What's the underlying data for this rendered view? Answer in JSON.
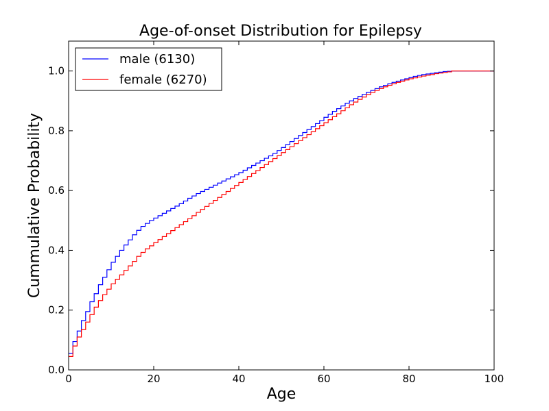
{
  "chart_data": {
    "type": "line",
    "step": true,
    "title": "Age-of-onset Distribution for Epilepsy",
    "xlabel": "Age",
    "ylabel": "Cummulative Probability",
    "xlim": [
      0,
      100
    ],
    "ylim": [
      0,
      1.1
    ],
    "xticks": [
      0,
      20,
      40,
      60,
      80,
      100
    ],
    "yticks": [
      0.0,
      0.2,
      0.4,
      0.6,
      0.8,
      1.0
    ],
    "xtick_labels": [
      "0",
      "20",
      "40",
      "60",
      "80",
      "100"
    ],
    "ytick_labels": [
      "0.0",
      "0.2",
      "0.4",
      "0.6",
      "0.8",
      "1.0"
    ],
    "grid": false,
    "legend_position": "top-left",
    "x": [
      0,
      1,
      2,
      3,
      4,
      5,
      6,
      7,
      8,
      9,
      10,
      11,
      12,
      13,
      14,
      15,
      16,
      17,
      18,
      19,
      20,
      21,
      22,
      23,
      24,
      25,
      26,
      27,
      28,
      29,
      30,
      31,
      32,
      33,
      34,
      35,
      36,
      37,
      38,
      39,
      40,
      41,
      42,
      43,
      44,
      45,
      46,
      47,
      48,
      49,
      50,
      51,
      52,
      53,
      54,
      55,
      56,
      57,
      58,
      59,
      60,
      61,
      62,
      63,
      64,
      65,
      66,
      67,
      68,
      69,
      70,
      71,
      72,
      73,
      74,
      75,
      76,
      77,
      78,
      79,
      80,
      81,
      82,
      83,
      84,
      85,
      86,
      87,
      88,
      89,
      90,
      91,
      92,
      93,
      94,
      95,
      96,
      97,
      98,
      99,
      100
    ],
    "series": [
      {
        "name": "male (6130)",
        "color": "#0000ff",
        "values": [
          0.055,
          0.095,
          0.13,
          0.165,
          0.195,
          0.228,
          0.255,
          0.285,
          0.31,
          0.335,
          0.36,
          0.38,
          0.4,
          0.418,
          0.435,
          0.452,
          0.467,
          0.48,
          0.49,
          0.5,
          0.508,
          0.516,
          0.524,
          0.532,
          0.54,
          0.548,
          0.556,
          0.565,
          0.574,
          0.582,
          0.59,
          0.597,
          0.604,
          0.611,
          0.618,
          0.625,
          0.632,
          0.639,
          0.646,
          0.653,
          0.66,
          0.668,
          0.676,
          0.684,
          0.692,
          0.7,
          0.708,
          0.716,
          0.724,
          0.734,
          0.744,
          0.754,
          0.764,
          0.774,
          0.784,
          0.794,
          0.804,
          0.814,
          0.824,
          0.834,
          0.845,
          0.855,
          0.865,
          0.874,
          0.883,
          0.892,
          0.9,
          0.908,
          0.915,
          0.922,
          0.929,
          0.935,
          0.941,
          0.947,
          0.952,
          0.957,
          0.962,
          0.966,
          0.97,
          0.974,
          0.978,
          0.982,
          0.985,
          0.988,
          0.99,
          0.992,
          0.994,
          0.996,
          0.998,
          0.999,
          1.0,
          1.0,
          1.0,
          1.0,
          1.0,
          1.0,
          1.0,
          1.0,
          1.0,
          1.0,
          1.0
        ]
      },
      {
        "name": "female (6270)",
        "color": "#ff0000",
        "values": [
          0.045,
          0.08,
          0.11,
          0.135,
          0.16,
          0.185,
          0.21,
          0.232,
          0.252,
          0.27,
          0.288,
          0.303,
          0.318,
          0.333,
          0.348,
          0.363,
          0.38,
          0.393,
          0.405,
          0.415,
          0.426,
          0.436,
          0.446,
          0.456,
          0.466,
          0.476,
          0.486,
          0.496,
          0.506,
          0.516,
          0.527,
          0.537,
          0.547,
          0.557,
          0.567,
          0.577,
          0.587,
          0.597,
          0.607,
          0.617,
          0.627,
          0.637,
          0.647,
          0.657,
          0.667,
          0.677,
          0.687,
          0.697,
          0.707,
          0.717,
          0.727,
          0.737,
          0.747,
          0.757,
          0.767,
          0.777,
          0.787,
          0.797,
          0.807,
          0.817,
          0.827,
          0.837,
          0.847,
          0.857,
          0.867,
          0.877,
          0.887,
          0.896,
          0.905,
          0.913,
          0.921,
          0.928,
          0.935,
          0.941,
          0.947,
          0.952,
          0.957,
          0.962,
          0.966,
          0.97,
          0.974,
          0.977,
          0.98,
          0.983,
          0.986,
          0.988,
          0.991,
          0.993,
          0.995,
          0.997,
          1.0,
          1.0,
          1.0,
          1.0,
          1.0,
          1.0,
          1.0,
          1.0,
          1.0,
          1.0,
          1.0
        ]
      }
    ]
  }
}
